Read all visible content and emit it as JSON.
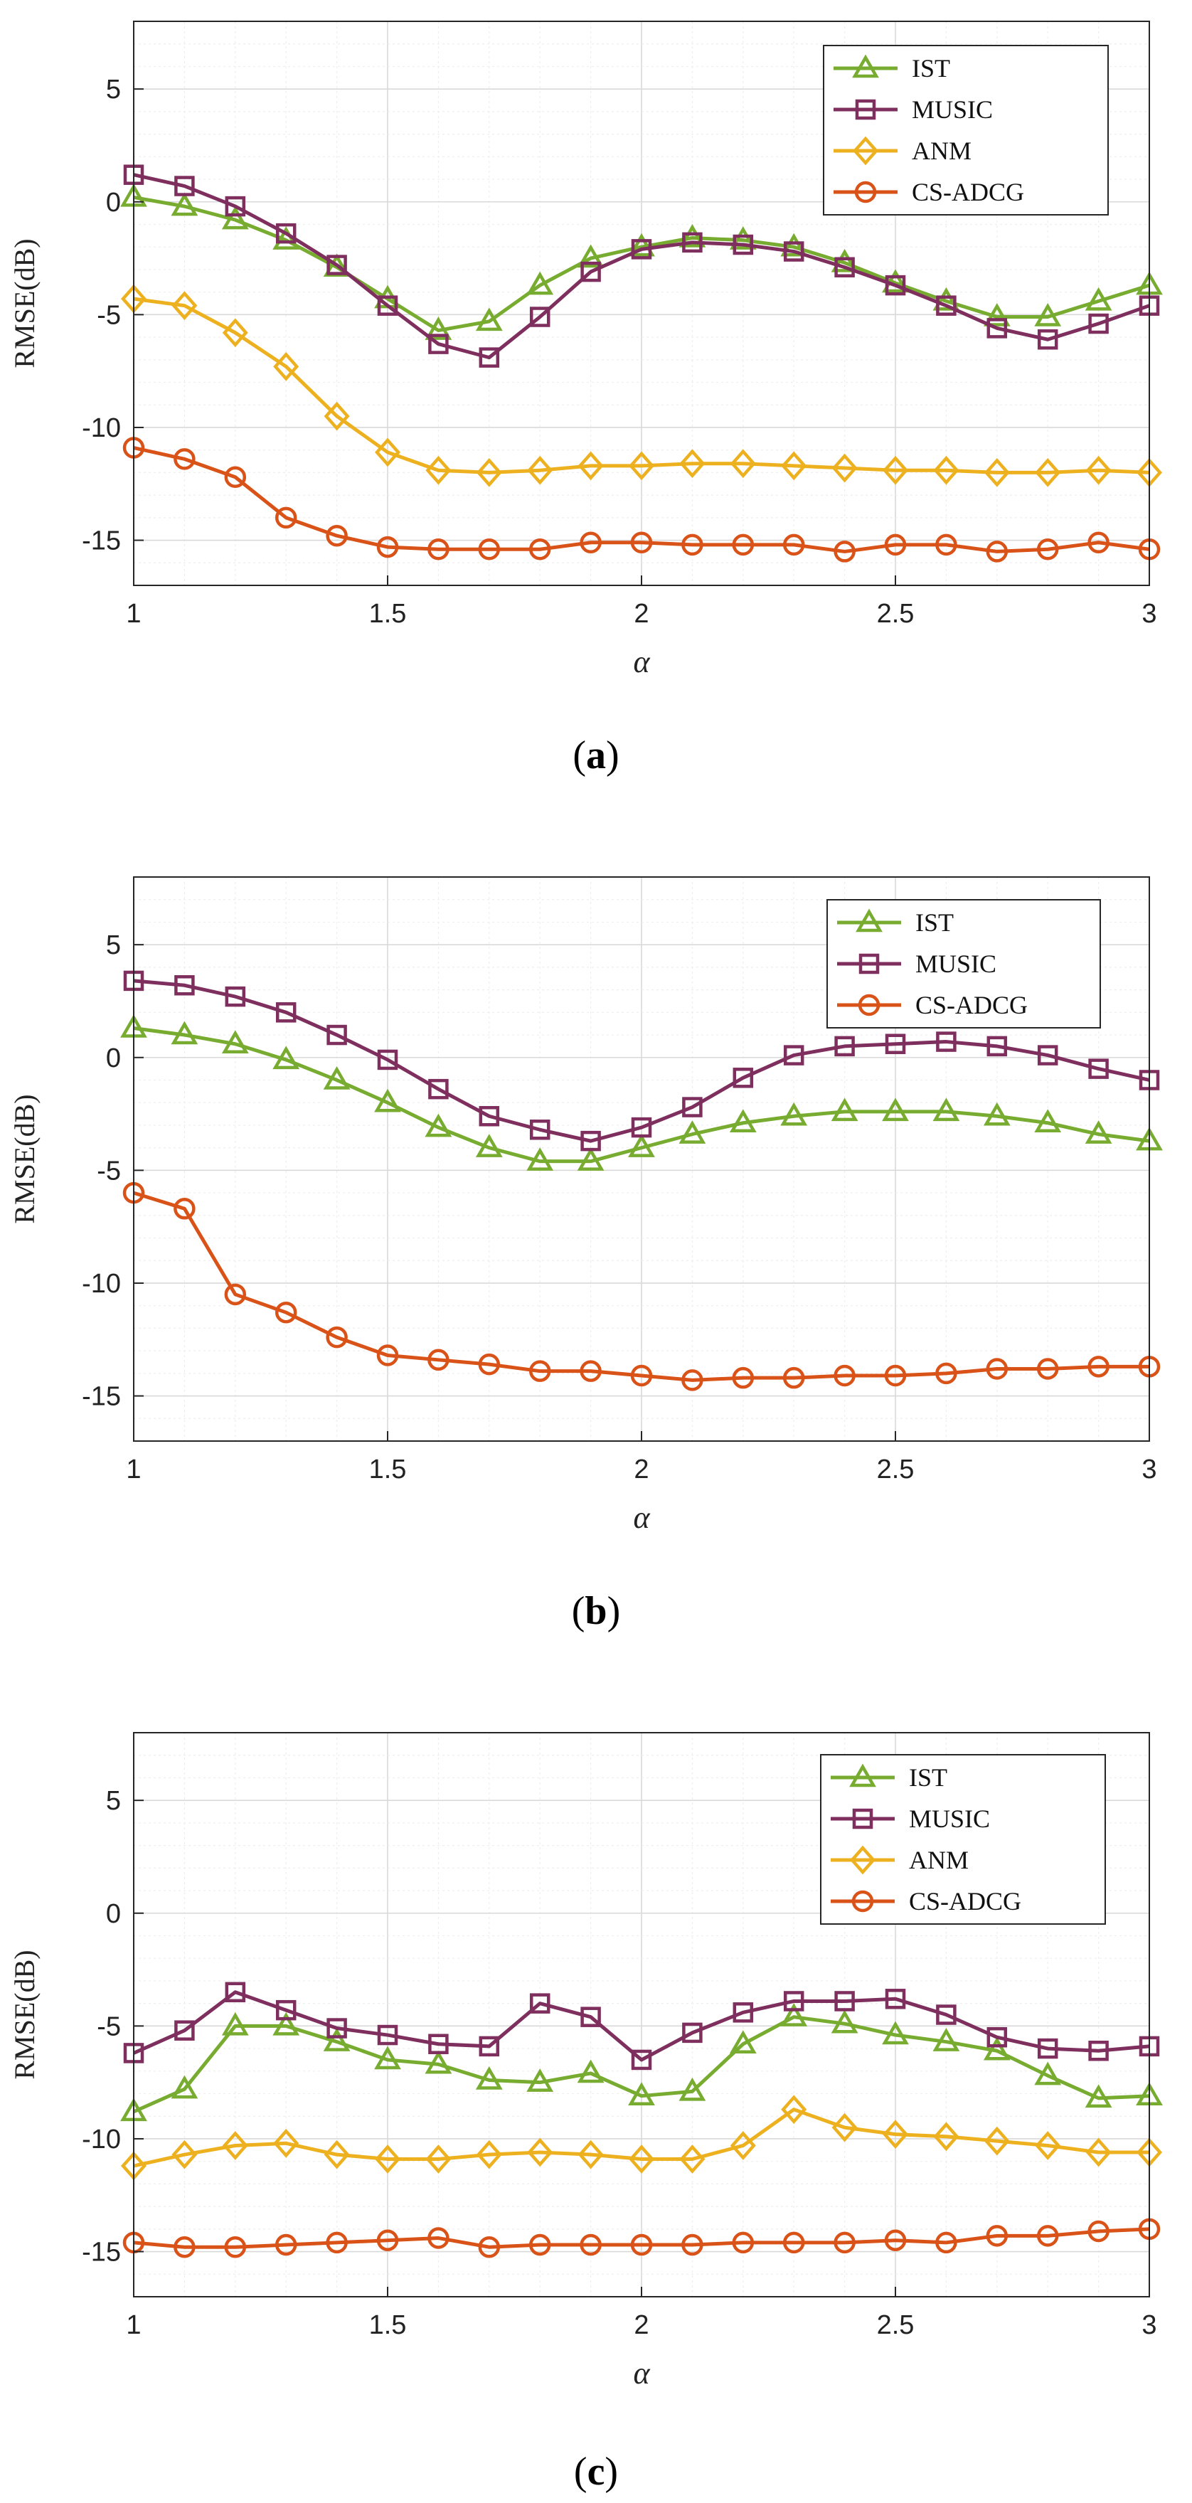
{
  "chart_data": [
    {
      "type": "line",
      "caption_letter": "a",
      "xlabel": "α",
      "ylabel": "RMSE(dB)",
      "xlim": [
        1,
        3
      ],
      "ylim": [
        -17,
        8
      ],
      "xticks": [
        "1",
        "1.5",
        "2",
        "2.5",
        "3"
      ],
      "yticks": [
        "5",
        "0",
        "-5",
        "-10",
        "-15"
      ],
      "grid": true,
      "legend_position": "top-right",
      "x": [
        1.0,
        1.1,
        1.2,
        1.3,
        1.4,
        1.5,
        1.6,
        1.7,
        1.8,
        1.9,
        2.0,
        2.1,
        2.2,
        2.3,
        2.4,
        2.5,
        2.6,
        2.7,
        2.8,
        2.9,
        3.0
      ],
      "series": [
        {
          "name": "IST",
          "color": "#77AC30",
          "marker": "triangle",
          "values": [
            0.2,
            -0.2,
            -0.8,
            -1.7,
            -2.9,
            -4.3,
            -5.7,
            -5.3,
            -3.7,
            -2.5,
            -2.0,
            -1.6,
            -1.7,
            -2.0,
            -2.7,
            -3.6,
            -4.4,
            -5.1,
            -5.1,
            -4.4,
            -3.7
          ]
        },
        {
          "name": "MUSIC",
          "color": "#7E2F5E",
          "marker": "square",
          "values": [
            1.2,
            0.7,
            -0.2,
            -1.4,
            -2.8,
            -4.6,
            -6.3,
            -6.9,
            -5.1,
            -3.1,
            -2.1,
            -1.8,
            -1.9,
            -2.2,
            -2.9,
            -3.7,
            -4.6,
            -5.6,
            -6.1,
            -5.4,
            -4.6
          ]
        },
        {
          "name": "ANM",
          "color": "#EDB120",
          "marker": "diamond",
          "values": [
            -4.3,
            -4.6,
            -5.8,
            -7.3,
            -9.5,
            -11.1,
            -11.9,
            -12.0,
            -11.9,
            -11.7,
            -11.7,
            -11.6,
            -11.6,
            -11.7,
            -11.8,
            -11.9,
            -11.9,
            -12.0,
            -12.0,
            -11.9,
            -12.0
          ]
        },
        {
          "name": "CS-ADCG",
          "color": "#D95319",
          "marker": "circle",
          "values": [
            -10.9,
            -11.4,
            -12.2,
            -14.0,
            -14.8,
            -15.3,
            -15.4,
            -15.4,
            -15.4,
            -15.1,
            -15.1,
            -15.2,
            -15.2,
            -15.2,
            -15.5,
            -15.2,
            -15.2,
            -15.5,
            -15.4,
            -15.1,
            -15.4
          ]
        }
      ]
    },
    {
      "type": "line",
      "caption_letter": "b",
      "xlabel": "α",
      "ylabel": "RMSE(dB)",
      "xlim": [
        1,
        3
      ],
      "ylim": [
        -17,
        8
      ],
      "xticks": [
        "1",
        "1.5",
        "2",
        "2.5",
        "3"
      ],
      "yticks": [
        "5",
        "0",
        "-5",
        "-10",
        "-15"
      ],
      "grid": true,
      "legend_position": "top-right",
      "x": [
        1.0,
        1.1,
        1.2,
        1.3,
        1.4,
        1.5,
        1.6,
        1.7,
        1.8,
        1.9,
        2.0,
        2.1,
        2.2,
        2.3,
        2.4,
        2.5,
        2.6,
        2.7,
        2.8,
        2.9,
        3.0
      ],
      "series": [
        {
          "name": "IST",
          "color": "#77AC30",
          "marker": "triangle",
          "values": [
            1.3,
            1.0,
            0.6,
            -0.1,
            -1.0,
            -2.0,
            -3.1,
            -4.0,
            -4.6,
            -4.6,
            -4.0,
            -3.4,
            -2.9,
            -2.6,
            -2.4,
            -2.4,
            -2.4,
            -2.6,
            -2.9,
            -3.4,
            -3.7
          ]
        },
        {
          "name": "MUSIC",
          "color": "#7E2F5E",
          "marker": "square",
          "values": [
            3.4,
            3.2,
            2.7,
            2.0,
            1.0,
            -0.1,
            -1.4,
            -2.6,
            -3.2,
            -3.7,
            -3.1,
            -2.2,
            -0.9,
            0.1,
            0.5,
            0.6,
            0.7,
            0.5,
            0.1,
            -0.5,
            -1.0
          ]
        },
        {
          "name": "CS-ADCG",
          "color": "#D95319",
          "marker": "circle",
          "values": [
            -6.0,
            -6.7,
            -10.5,
            -11.3,
            -12.4,
            -13.2,
            -13.4,
            -13.6,
            -13.9,
            -13.9,
            -14.1,
            -14.3,
            -14.2,
            -14.2,
            -14.1,
            -14.1,
            -14.0,
            -13.8,
            -13.8,
            -13.7,
            -13.7
          ]
        }
      ]
    },
    {
      "type": "line",
      "caption_letter": "c",
      "xlabel": "α",
      "ylabel": "RMSE(dB)",
      "xlim": [
        1,
        3
      ],
      "ylim": [
        -17,
        8
      ],
      "xticks": [
        "1",
        "1.5",
        "2",
        "2.5",
        "3"
      ],
      "yticks": [
        "5",
        "0",
        "-5",
        "-10",
        "-15"
      ],
      "grid": true,
      "legend_position": "top-right",
      "x": [
        1.0,
        1.1,
        1.2,
        1.3,
        1.4,
        1.5,
        1.6,
        1.7,
        1.8,
        1.9,
        2.0,
        2.1,
        2.2,
        2.3,
        2.4,
        2.5,
        2.6,
        2.7,
        2.8,
        2.9,
        3.0
      ],
      "series": [
        {
          "name": "IST",
          "color": "#77AC30",
          "marker": "triangle",
          "values": [
            -8.8,
            -7.8,
            -5.0,
            -5.0,
            -5.7,
            -6.5,
            -6.7,
            -7.4,
            -7.5,
            -7.1,
            -8.1,
            -7.9,
            -5.8,
            -4.6,
            -4.9,
            -5.4,
            -5.7,
            -6.1,
            -7.2,
            -8.2,
            -8.1
          ]
        },
        {
          "name": "MUSIC",
          "color": "#7E2F5E",
          "marker": "square",
          "values": [
            -6.2,
            -5.2,
            -3.5,
            -4.3,
            -5.1,
            -5.4,
            -5.8,
            -5.9,
            -4.0,
            -4.6,
            -6.5,
            -5.3,
            -4.4,
            -3.9,
            -3.9,
            -3.8,
            -4.5,
            -5.5,
            -6.0,
            -6.1,
            -5.9
          ]
        },
        {
          "name": "ANM",
          "color": "#EDB120",
          "marker": "diamond",
          "values": [
            -11.2,
            -10.7,
            -10.3,
            -10.2,
            -10.7,
            -10.9,
            -10.9,
            -10.7,
            -10.6,
            -10.7,
            -10.9,
            -10.9,
            -10.3,
            -8.7,
            -9.5,
            -9.8,
            -9.9,
            -10.1,
            -10.3,
            -10.6,
            -10.6
          ]
        },
        {
          "name": "CS-ADCG",
          "color": "#D95319",
          "marker": "circle",
          "values": [
            -14.6,
            -14.8,
            -14.8,
            -14.7,
            -14.6,
            -14.5,
            -14.4,
            -14.8,
            -14.7,
            -14.7,
            -14.7,
            -14.7,
            -14.6,
            -14.6,
            -14.6,
            -14.5,
            -14.6,
            -14.3,
            -14.3,
            -14.1,
            -14.0
          ]
        }
      ]
    }
  ]
}
